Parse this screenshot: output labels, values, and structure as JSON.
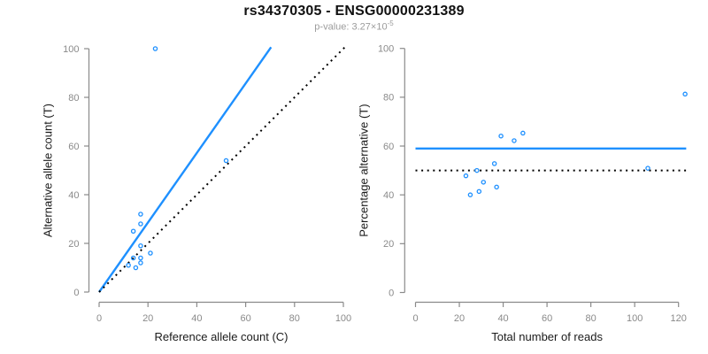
{
  "header": {
    "title": "rs34370305 - ENSG00000231389",
    "pvalue": {
      "prefix": "p-value: 3.27",
      "base": "×10",
      "exponent": "-5"
    }
  },
  "colors": {
    "point_blue": "#1E90FF",
    "fit_blue": "#1E90FF",
    "identity_black": "#000000",
    "axis_gray": "#8A8A8A",
    "axis_title_dark": "#1A1A1A",
    "subtitle_gray": "#9C9C9C"
  },
  "chart_data": {
    "type": "scatter",
    "title": "rs34370305 - ENSG00000231389",
    "subtitle": "p-value: 3.27×10^-5",
    "grid": false,
    "legend": null,
    "panels": [
      {
        "name": "allele-counts",
        "xlabel": "Reference allele count (C)",
        "ylabel": "Alternative allele count (T)",
        "xlim": [
          0,
          100
        ],
        "ylim": [
          0,
          100
        ],
        "xticks": [
          0,
          20,
          40,
          60,
          80,
          100
        ],
        "yticks": [
          0,
          20,
          40,
          60,
          80,
          100
        ],
        "marker": "open-circle",
        "points": [
          [
            23,
            100
          ],
          [
            52,
            54
          ],
          [
            17,
            32
          ],
          [
            17,
            28
          ],
          [
            14,
            25
          ],
          [
            17,
            19
          ],
          [
            21,
            16
          ],
          [
            17,
            14
          ],
          [
            14,
            14
          ],
          [
            17,
            12
          ],
          [
            12,
            11
          ],
          [
            15,
            10
          ]
        ],
        "lines": [
          {
            "name": "fit-line",
            "style": "solid",
            "color": "#1E90FF",
            "from": [
              0,
              0
            ],
            "to": [
              70.4,
              100.6
            ]
          },
          {
            "name": "identity-line",
            "style": "dotted",
            "color": "#000000",
            "from": [
              0,
              0
            ],
            "to": [
              100.6,
              100.6
            ]
          }
        ]
      },
      {
        "name": "percentage-vs-reads",
        "xlabel": "Total number of reads",
        "ylabel": "Percentage alternative (T)",
        "xlim": [
          0,
          120
        ],
        "ylim": [
          0,
          100
        ],
        "xticks": [
          0,
          20,
          40,
          60,
          80,
          100,
          120
        ],
        "yticks": [
          0,
          20,
          40,
          60,
          80,
          100
        ],
        "marker": "open-circle",
        "points": [
          [
            123,
            81.3
          ],
          [
            106,
            50.9
          ],
          [
            49,
            65.3
          ],
          [
            45,
            62.2
          ],
          [
            39,
            64.1
          ],
          [
            36,
            52.8
          ],
          [
            37,
            43.2
          ],
          [
            31,
            45.2
          ],
          [
            29,
            41.4
          ],
          [
            28,
            50.0
          ],
          [
            25,
            40.0
          ],
          [
            23,
            47.8
          ]
        ],
        "lines": [
          {
            "name": "fit-line",
            "style": "solid",
            "color": "#1E90FF",
            "from": [
              0,
              59
            ],
            "to": [
              123.5,
              59
            ]
          },
          {
            "name": "identity-line",
            "style": "dotted",
            "color": "#000000",
            "from": [
              0,
              50
            ],
            "to": [
              123.5,
              50
            ]
          }
        ]
      }
    ]
  }
}
